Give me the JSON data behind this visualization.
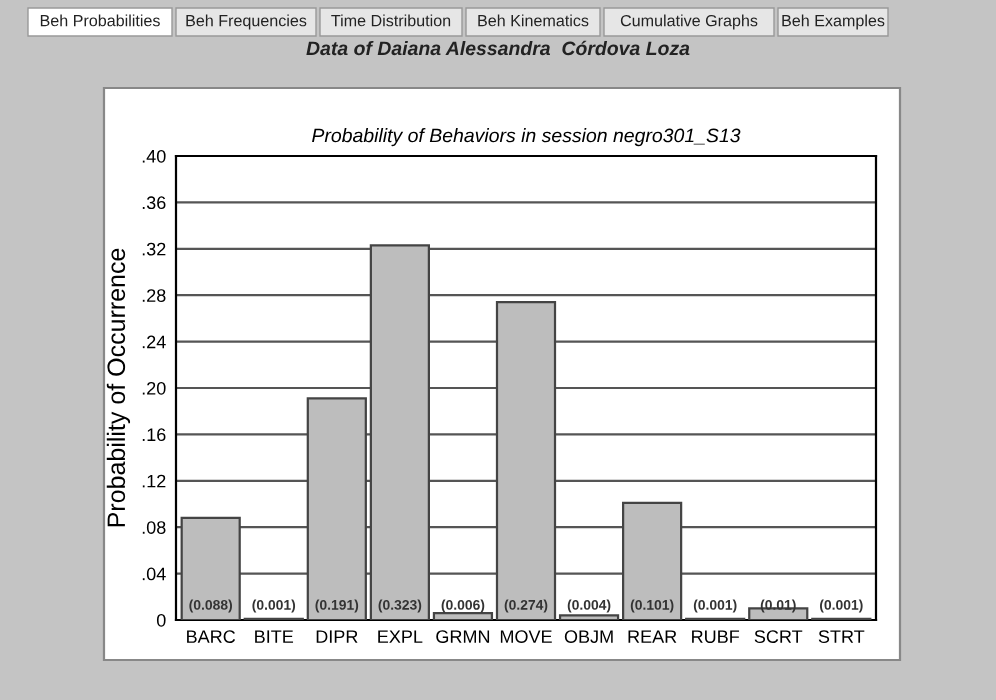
{
  "chart_data": {
    "type": "bar",
    "title": "Probability of Behaviors in session negro301_S13",
    "subtitle": "Data of Daiana Alessandra  Córdova Loza",
    "ylabel": "Probability of Occurrence",
    "annotations": [
      "Beh Probabilities",
      "Beh Frequencies",
      "Time Distribution",
      "Beh Kinematics",
      "Cumulative Graphs",
      "Beh Examples"
    ],
    "categories": [
      "BARC",
      "BITE",
      "DIPR",
      "EXPL",
      "GRMN",
      "MOVE",
      "OBJM",
      "REAR",
      "RUBF",
      "SCRT",
      "STRT"
    ],
    "values": [
      0.088,
      0.001,
      0.191,
      0.323,
      0.006,
      0.274,
      0.004,
      0.101,
      0.001,
      0.01,
      0.001
    ],
    "value_labels": [
      "(0.088)",
      "(0.001)",
      "(0.191)",
      "(0.323)",
      "(0.006)",
      "(0.274)",
      "(0.004)",
      "(0.101)",
      "(0.001)",
      "(0.01)",
      "(0.001)"
    ],
    "color": "#bdbdbd",
    "ylim": [
      0,
      0.4
    ],
    "yticks": [
      0,
      {
        "value": 0.04,
        "label": ".04"
      },
      {
        "value": 0.08,
        "label": ".08"
      },
      {
        "value": 0.12,
        "label": ".12"
      },
      {
        "value": 0.16,
        "label": ".16"
      },
      {
        "value": 0.2,
        "label": ".20"
      },
      {
        "value": 0.24,
        "label": ".24"
      },
      {
        "value": 0.28,
        "label": ".28"
      },
      {
        "value": 0.32,
        "label": ".32"
      },
      {
        "value": 0.36,
        "label": ".36"
      },
      {
        "value": 0.4,
        "label": ".40"
      }
    ],
    "grid": "y"
  }
}
